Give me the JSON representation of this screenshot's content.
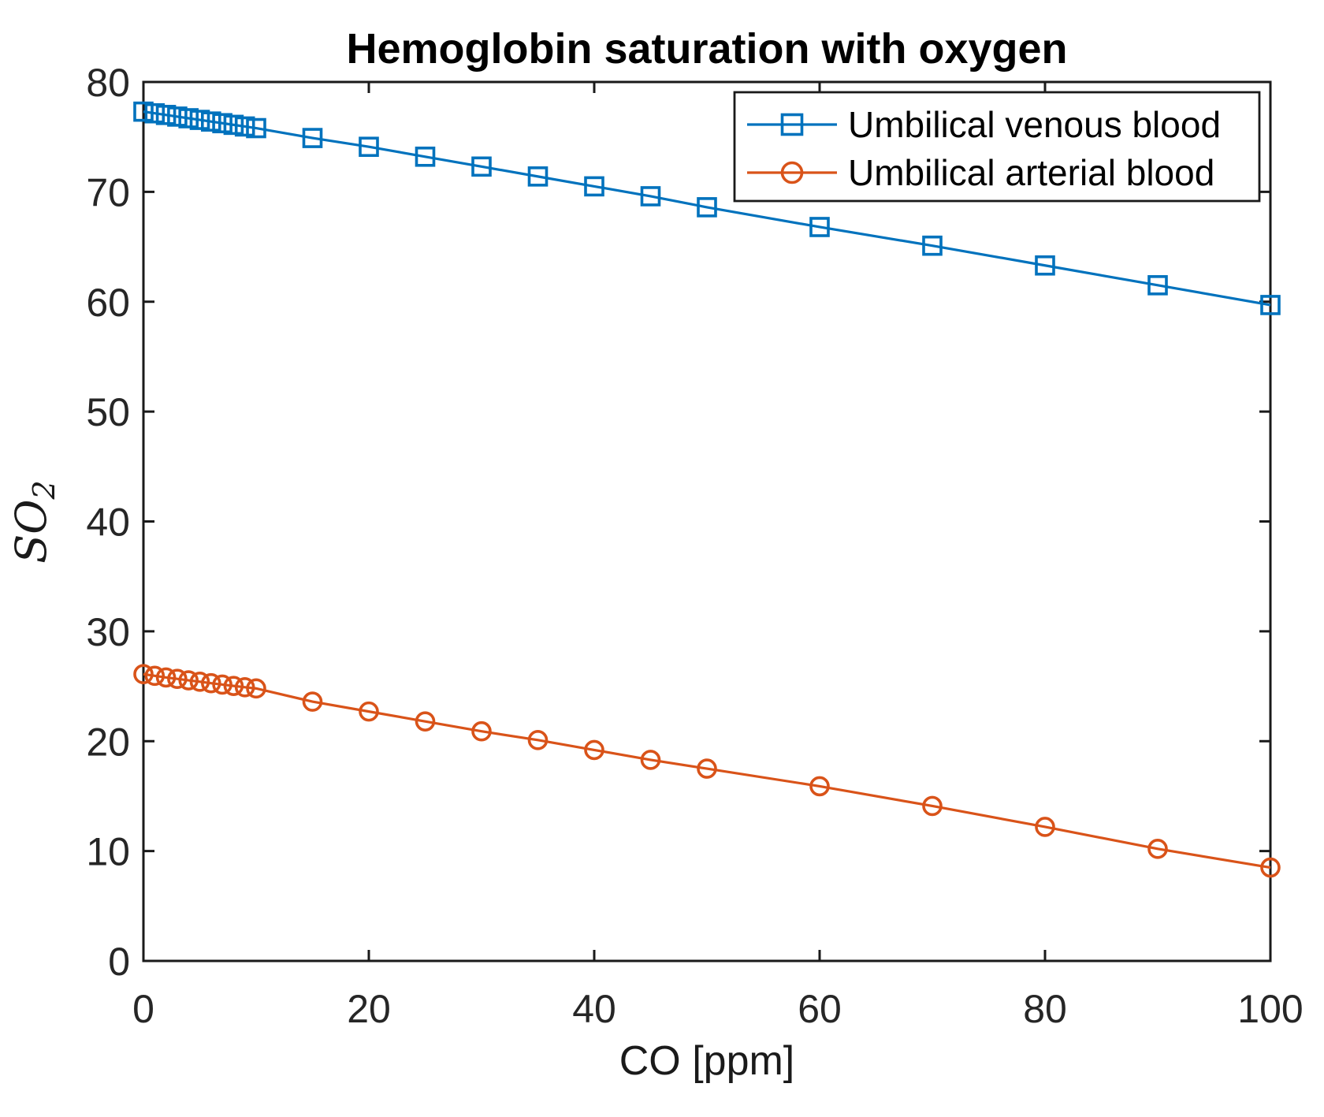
{
  "figure": {
    "background": "#ffffff",
    "axis_color": "#1a1a1a",
    "tick_label_color": "#262626"
  },
  "chart_data": {
    "type": "line",
    "title": "Hemoglobin saturation with oxygen",
    "xlabel": "CO [ppm]",
    "ylabel": "SO",
    "ylabel_subscript": "2",
    "xlim": [
      0,
      100
    ],
    "ylim": [
      0,
      80
    ],
    "xticks": [
      0,
      20,
      40,
      60,
      80,
      100
    ],
    "yticks": [
      0,
      10,
      20,
      30,
      40,
      50,
      60,
      70,
      80
    ],
    "grid": false,
    "box": true,
    "legend_position": "top-right-inside",
    "x": [
      0,
      1,
      2,
      3,
      4,
      5,
      6,
      7,
      8,
      9,
      10,
      15,
      20,
      25,
      30,
      35,
      40,
      45,
      50,
      60,
      70,
      80,
      90,
      100
    ],
    "series": [
      {
        "name": "Umbilical venous blood",
        "color": "#0072BD",
        "marker": "square",
        "values": [
          77.3,
          77.15,
          77.0,
          76.85,
          76.7,
          76.55,
          76.4,
          76.25,
          76.1,
          75.95,
          75.8,
          74.9,
          74.1,
          73.2,
          72.3,
          71.4,
          70.5,
          69.6,
          68.6,
          66.8,
          65.1,
          63.3,
          61.5,
          59.7
        ]
      },
      {
        "name": "Umbilical arterial blood",
        "color": "#D95319",
        "marker": "circle",
        "values": [
          26.1,
          25.95,
          25.8,
          25.67,
          25.54,
          25.41,
          25.28,
          25.15,
          25.03,
          24.91,
          24.8,
          23.6,
          22.7,
          21.8,
          20.9,
          20.1,
          19.2,
          18.3,
          17.5,
          15.9,
          14.1,
          12.2,
          10.2,
          8.5
        ]
      }
    ]
  }
}
